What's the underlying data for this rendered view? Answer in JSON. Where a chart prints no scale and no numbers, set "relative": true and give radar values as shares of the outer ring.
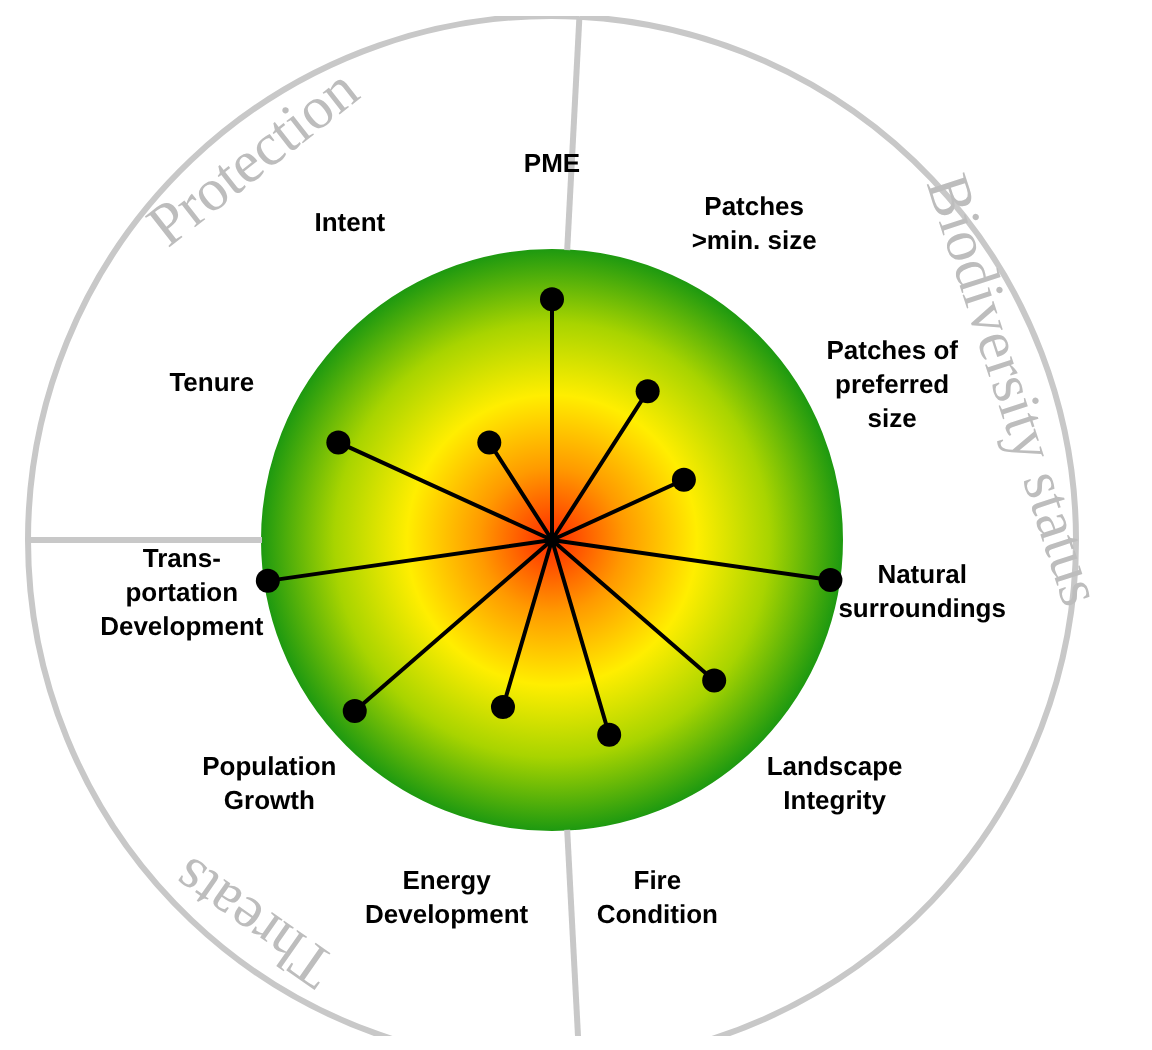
{
  "chart_data": {
    "type": "radar",
    "relative": true,
    "categories": [
      "PME",
      "Patches >min. size",
      "Patches of preferred size",
      "Natural surroundings",
      "Landscape Integrity",
      "Fire Condition",
      "Energy Development",
      "Population Growth",
      "Trans-portation Development",
      "Tenure",
      "Intent"
    ],
    "series": [
      {
        "color": "#000000",
        "values": [
          0.83,
          0.61,
          0.5,
          0.97,
          0.74,
          0.7,
          0.6,
          0.9,
          0.99,
          0.81,
          0.4
        ]
      }
    ],
    "marker": "circle",
    "grid": false,
    "legend": false,
    "annotations": [
      "Protection",
      "Biodiversity status",
      "Threats"
    ]
  }
}
